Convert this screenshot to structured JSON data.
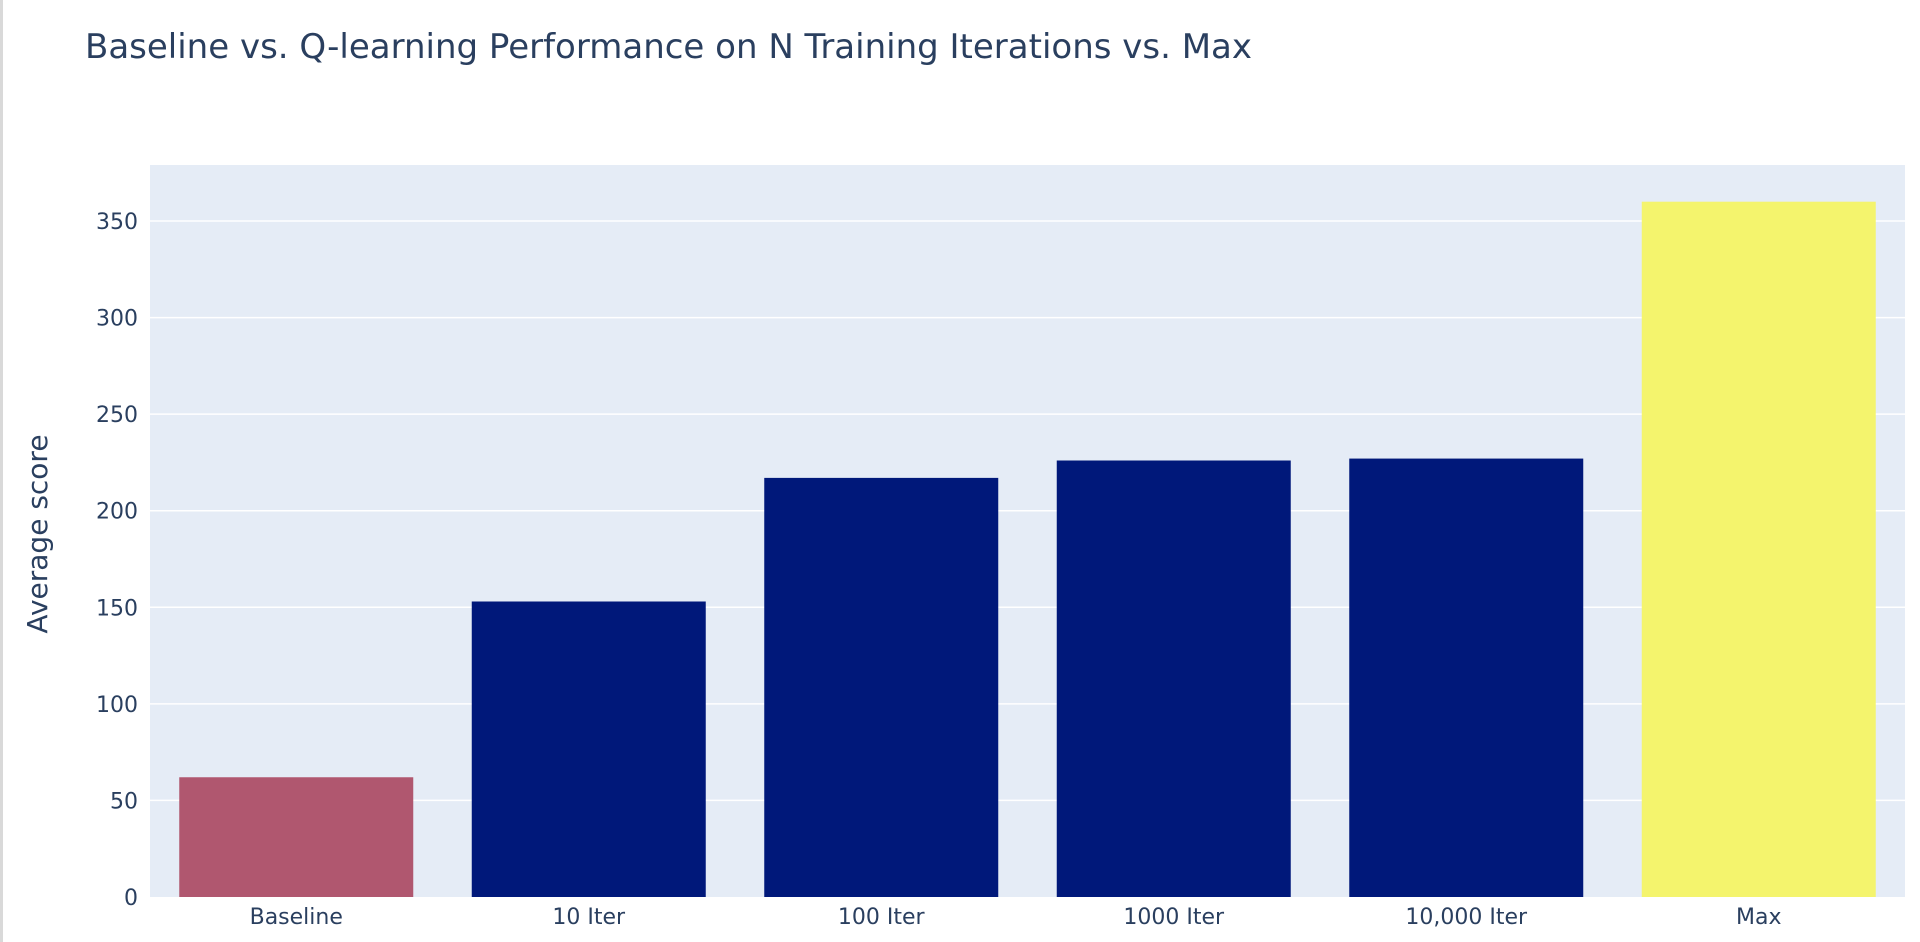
{
  "chart_data": {
    "type": "bar",
    "title": "Baseline vs. Q-learning Performance on N Training Iterations vs. Max",
    "xlabel": "",
    "ylabel": "Average score",
    "categories": [
      "Baseline",
      "10 Iter",
      "100 Iter",
      "1000 Iter",
      "10,000 Iter",
      "Max"
    ],
    "values": [
      62,
      153,
      217,
      226,
      227,
      360
    ],
    "bar_colors": [
      "#b0576f",
      "#00187a",
      "#00187a",
      "#00187a",
      "#00187a",
      "#f4f46d"
    ],
    "ylim": [
      0,
      379
    ],
    "yticks": [
      0,
      50,
      100,
      150,
      200,
      250,
      300,
      350
    ],
    "grid": true,
    "legend": "none",
    "plot_background": "#e5ecf6",
    "text_color": "#2a3f5f"
  }
}
